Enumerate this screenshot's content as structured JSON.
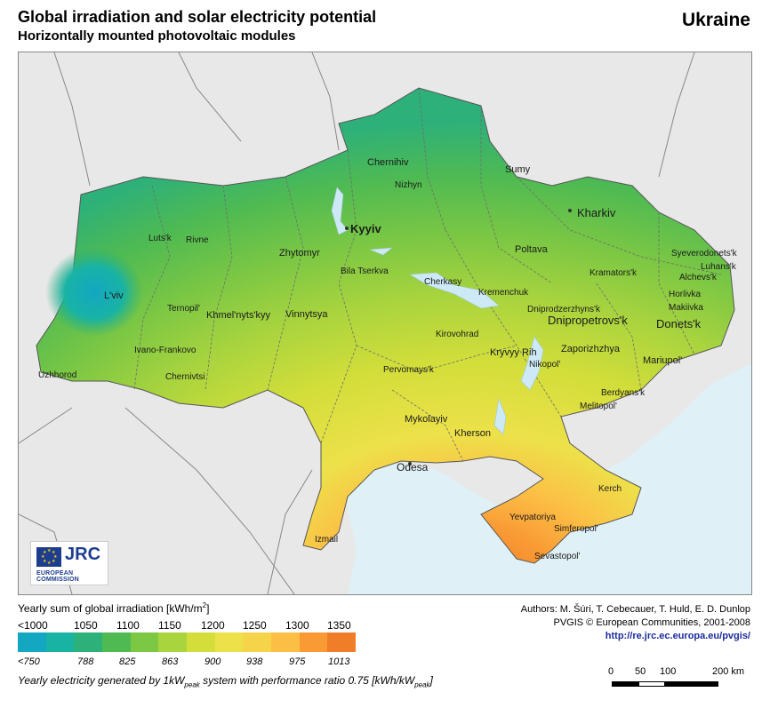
{
  "header": {
    "title": "Global irradiation and solar electricity potential",
    "subtitle": "Horizontally mounted photovoltaic modules",
    "country": "Ukraine"
  },
  "map": {
    "cities": {
      "chernihiv": "Chernihiv",
      "sumy": "Sumy",
      "nizhyn": "Nizhyn",
      "kharkiv": "Kharkiv",
      "kyyiv": "Kyyiv",
      "lutsk": "Luts'k",
      "rivne": "Rivne",
      "zhytomyr": "Zhytomyr",
      "poltava": "Poltava",
      "sieverodonetsk": "Syeverodonets'k",
      "luhansk": "Luhans'k",
      "alchevsk": "Alchevs'k",
      "bila_tserkva": "Bila Tserkva",
      "kramatorsk": "Kramators'k",
      "cherkasy": "Cherkasy",
      "kremenchuk": "Kremenchuk",
      "horlivka": "Horlivka",
      "lviv": "L'viv",
      "makiivka": "Makiivka",
      "ternopil": "Ternopil'",
      "khmelnytskyy": "Khmel'nyts'kyy",
      "vinnytsya": "Vinnytsya",
      "dniprodzerzhynsk": "Dniprodzerzhyns'k",
      "dnipropetrovsk": "Dnipropetrovs'k",
      "donetsk": "Donets'k",
      "kirovohrad": "Kirovohrad",
      "ivano_frankovo": "Ivano-Frankovo",
      "kryvyy_rih": "Kryvyy Rih",
      "zaporizhzhya": "Zaporizhzhya",
      "mariupol": "Mariupol'",
      "nikopol": "Nikopol'",
      "uzhhorod": "Uzhhorod",
      "chernivtsi": "Chernivtsi",
      "pervomaysk": "Pervomays'k",
      "berdyansk": "Berdyans'k",
      "melitopol": "Melitopol'",
      "mykolayiv": "Mykolayiv",
      "kherson": "Kherson",
      "odesa": "Odesa",
      "kerch": "Kerch",
      "yevpatoriya": "Yevpatoriya",
      "simferopol": "Simferopol'",
      "izmail": "Izmail",
      "sevastopol": "Sevastopol'"
    }
  },
  "logo": {
    "name": "JRC",
    "org": "EUROPEAN COMMISSION"
  },
  "legend": {
    "title": "Yearly sum of global irradiation [kWh/m",
    "title_sup": "2",
    "title_end": "]",
    "irradiation_labels": [
      "<1000",
      "1050",
      "1100",
      "1150",
      "1200",
      "1250",
      "1300",
      "1350"
    ],
    "electricity_labels": [
      "<750",
      "788",
      "825",
      "863",
      "900",
      "938",
      "975",
      "1013"
    ],
    "colors": [
      "#13a7c2",
      "#19b3a4",
      "#2db07a",
      "#4fba52",
      "#7cc744",
      "#aad43e",
      "#d3de3a",
      "#ede14a",
      "#f6d44a",
      "#fcbf45",
      "#f99a35",
      "#f07d28"
    ],
    "caption_a": "Yearly electricity generated by 1kW",
    "caption_sub1": "peak",
    "caption_b": " system with performance ratio 0.75 [kWh/kW",
    "caption_sub2": "peak",
    "caption_c": "]"
  },
  "credits": {
    "authors": "Authors: M. Šúri, T. Cebecauer, T. Huld, E. D. Dunlop",
    "copyright": "PVGIS © European Communities, 2001-2008",
    "url": "http://re.jrc.ec.europa.eu/pvgis/"
  },
  "scale": {
    "labels": [
      "0",
      "50",
      "100",
      "200 km"
    ]
  }
}
